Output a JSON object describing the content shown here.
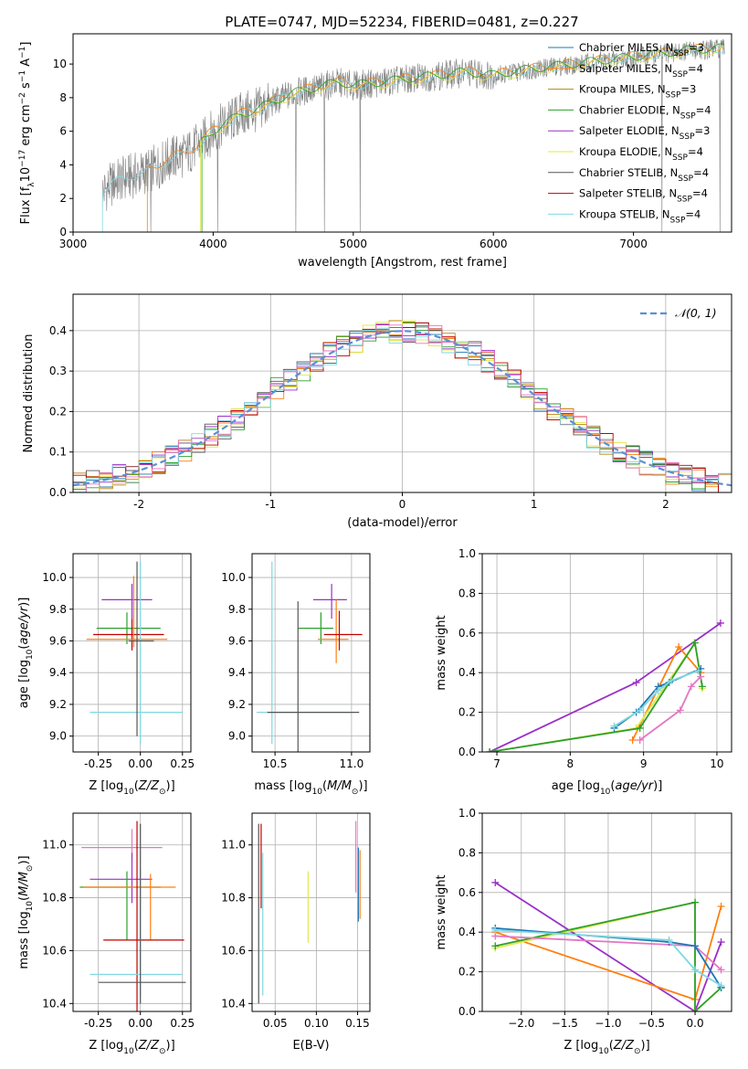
{
  "figure_title": "PLATE=0747, MJD=52234, FIBERID=0481, z=0.227",
  "colors": {
    "Chabrier MILES": "#1f77b4",
    "Salpeter MILES": "#ff7f0e",
    "Kroupa MILES": "#b8860b",
    "Chabrier ELODIE": "#2ca02c",
    "Salpeter ELODIE": "#9b30c8",
    "Kroupa ELODIE": "#e0e84a",
    "Chabrier STELIB": "#555555",
    "Salpeter STELIB": "#c00000",
    "Kroupa STELIB": "#7fd8e0",
    "data": "#808080",
    "gauss": "#5b8fd6",
    "pink": "#e377c2",
    "lime": "#bcdf3a"
  },
  "chart_data": [
    {
      "id": "spectrum",
      "type": "line",
      "xlabel": "wavelength [Angstrom, rest frame]",
      "ylabel": "Flux [fλ10⁻¹⁷ erg cm⁻² s⁻¹ A⁻¹]",
      "xlim": [
        3000,
        7700
      ],
      "ylim": [
        0,
        11.8
      ],
      "xticks": [
        3000,
        4000,
        5000,
        6000,
        7000
      ],
      "yticks": [
        0,
        2,
        4,
        6,
        8,
        10
      ],
      "grid": false,
      "legend_position": "top-right",
      "legend": [
        {
          "label": "Chabrier MILES, N",
          "sub": "SSP",
          "suffix": "=3",
          "color": "#1f77b4"
        },
        {
          "label": "Salpeter MILES, N",
          "sub": "SSP",
          "suffix": "=4",
          "color": "#ff7f0e"
        },
        {
          "label": "Kroupa MILES, N",
          "sub": "SSP",
          "suffix": "=3",
          "color": "#b8860b"
        },
        {
          "label": "Chabrier ELODIE, N",
          "sub": "SSP",
          "suffix": "=4",
          "color": "#2ca02c"
        },
        {
          "label": "Salpeter ELODIE, N",
          "sub": "SSP",
          "suffix": "=3",
          "color": "#9b30c8"
        },
        {
          "label": "Kroupa ELODIE, N",
          "sub": "SSP",
          "suffix": "=4",
          "color": "#e0e84a"
        },
        {
          "label": "Chabrier STELIB, N",
          "sub": "SSP",
          "suffix": "=4",
          "color": "#555555"
        },
        {
          "label": "Salpeter STELIB, N",
          "sub": "SSP",
          "suffix": "=4",
          "color": "#c00000"
        },
        {
          "label": "Kroupa STELIB, N",
          "sub": "SSP",
          "suffix": "=4",
          "color": "#7fd8e0"
        }
      ],
      "continuum": {
        "x": [
          3210,
          3300,
          3400,
          3500,
          3600,
          3700,
          3800,
          3900,
          4000,
          4100,
          4200,
          4300,
          4400,
          4500,
          4600,
          4700,
          4800,
          4900,
          5000,
          5200,
          5400,
          5600,
          5800,
          6000,
          6200,
          6400,
          6600,
          6800,
          7000,
          7200,
          7400,
          7600
        ],
        "y": [
          2.4,
          3.0,
          3.3,
          3.5,
          3.9,
          4.4,
          4.6,
          5.2,
          6.0,
          6.5,
          7.0,
          7.2,
          7.6,
          8.0,
          8.3,
          8.5,
          8.7,
          8.9,
          8.7,
          8.9,
          9.1,
          9.3,
          9.5,
          9.3,
          9.6,
          9.8,
          10.0,
          10.2,
          10.4,
          10.6,
          10.8,
          10.9
        ]
      },
      "model_starts": [
        {
          "series": "Kroupa STELIB",
          "x_start": 3210
        },
        {
          "series": "Salpeter MILES",
          "x_start": 3530
        },
        {
          "series": "Kroupa ELODIE",
          "x_start": 3910
        }
      ]
    },
    {
      "id": "residual_histogram",
      "type": "bar",
      "xlabel": "(data-model)/error",
      "ylabel": "Normed distribution",
      "xlim": [
        -2.5,
        2.5
      ],
      "ylim": [
        0,
        0.49
      ],
      "xticks": [
        -2,
        -1,
        0,
        1,
        2
      ],
      "yticks": [
        0.0,
        0.1,
        0.2,
        0.3,
        0.4
      ],
      "grid": true,
      "legend_position": "top-right",
      "legend": [
        {
          "label": "𝒩(0, 1)",
          "color": "#5b8fd6",
          "dashed": true
        }
      ],
      "bin_width": 0.1
    },
    {
      "id": "age_vs_Z",
      "type": "scatter",
      "xlabel": "Z [log₁₀(Z/Z⊙)]",
      "ylabel": "age  [log₁₀(age/yr)]",
      "xlim": [
        -0.4,
        0.3
      ],
      "ylim": [
        8.9,
        10.15
      ],
      "xticks": [
        -0.25,
        0.0,
        0.25
      ],
      "yticks": [
        9.0,
        9.2,
        9.4,
        9.6,
        9.8,
        10.0
      ],
      "grid": true,
      "points": [
        {
          "series": "Salpeter ELODIE",
          "x": -0.05,
          "y": 9.86,
          "xerr": [
            0.18,
            0.12
          ],
          "yerr": [
            0.12,
            0.1
          ]
        },
        {
          "series": "Chabrier ELODIE",
          "x": -0.08,
          "y": 9.68,
          "xerr": [
            0.18,
            0.2
          ],
          "yerr": [
            0.1,
            0.1
          ]
        },
        {
          "series": "Salpeter STELIB",
          "x": -0.05,
          "y": 9.64,
          "xerr": [
            0.23,
            0.19
          ],
          "yerr": [
            0.1,
            0.1
          ]
        },
        {
          "series": "Salpeter MILES",
          "x": -0.04,
          "y": 9.61,
          "xerr": [
            0.28,
            0.2
          ],
          "yerr": [
            0.05,
            0.4
          ]
        },
        {
          "series": "Kroupa STELIB",
          "x": 0.0,
          "y": 9.15,
          "xerr": [
            0.3,
            0.25
          ],
          "yerr": [
            0.2,
            0.95
          ]
        },
        {
          "series": "Chabrier STELIB",
          "x": -0.02,
          "y": 9.6,
          "xerr": [
            0.05,
            0.1
          ],
          "yerr": [
            0.6,
            0.5
          ]
        }
      ]
    },
    {
      "id": "age_vs_mass",
      "type": "scatter",
      "xlabel": "mass [log₁₀(M/M⊙)]",
      "ylabel": "",
      "xlim": [
        10.35,
        11.12
      ],
      "ylim": [
        8.9,
        10.15
      ],
      "xticks": [
        10.5,
        11.0
      ],
      "yticks": [
        9.0,
        9.2,
        9.4,
        9.6,
        9.8,
        10.0
      ],
      "grid": true,
      "points": [
        {
          "series": "Salpeter ELODIE",
          "x": 10.87,
          "y": 9.86,
          "xerr": [
            0.12,
            0.1
          ],
          "yerr": [
            0.12,
            0.1
          ]
        },
        {
          "series": "Chabrier ELODIE",
          "x": 10.8,
          "y": 9.68,
          "xerr": [
            0.15,
            0.08
          ],
          "yerr": [
            0.1,
            0.1
          ]
        },
        {
          "series": "Salpeter MILES",
          "x": 10.9,
          "y": 9.61,
          "xerr": [
            0.12,
            0.08
          ],
          "yerr": [
            0.15,
            0.25
          ]
        },
        {
          "series": "Salpeter STELIB",
          "x": 10.92,
          "y": 9.64,
          "xerr": [
            0.1,
            0.15
          ],
          "yerr": [
            0.1,
            0.15
          ]
        },
        {
          "series": "Kroupa STELIB",
          "x": 10.48,
          "y": 9.15,
          "xerr": [
            0.1,
            0.52
          ],
          "yerr": [
            0.2,
            0.95
          ]
        },
        {
          "series": "Chabrier STELIB",
          "x": 10.65,
          "y": 9.15,
          "xerr": [
            0.2,
            0.4
          ],
          "yerr": [
            0.5,
            0.7
          ]
        }
      ]
    },
    {
      "id": "mass_weight_vs_age",
      "type": "line",
      "xlabel": "age  [log₁₀(age/yr)]",
      "ylabel": "mass weight",
      "xlim": [
        6.8,
        10.2
      ],
      "ylim": [
        0.0,
        1.0
      ],
      "xticks": [
        7,
        8,
        9,
        10
      ],
      "yticks": [
        0.0,
        0.2,
        0.4,
        0.6,
        0.8,
        1.0
      ],
      "grid": true,
      "series": [
        {
          "name": "Salpeter ELODIE",
          "x": [
            6.9,
            8.9,
            10.05
          ],
          "y": [
            0.0,
            0.35,
            0.65
          ]
        },
        {
          "name": "Salpeter MILES",
          "x": [
            8.85,
            9.48,
            9.78
          ],
          "y": [
            0.06,
            0.53,
            0.4
          ]
        },
        {
          "name": "Kroupa ELODIE",
          "x": [
            6.9,
            8.9,
            9.7,
            9.8
          ],
          "y": [
            0.0,
            0.12,
            0.55,
            0.32
          ]
        },
        {
          "name": "Chabrier ELODIE",
          "x": [
            6.9,
            8.95,
            9.7,
            9.8
          ],
          "y": [
            0.0,
            0.12,
            0.55,
            0.33
          ]
        },
        {
          "name": "Chabrier MILES",
          "x": [
            8.6,
            8.9,
            9.2,
            9.35,
            9.78
          ],
          "y": [
            0.12,
            0.2,
            0.33,
            0.35,
            0.42
          ]
        },
        {
          "name": "pink",
          "x": [
            8.95,
            9.5,
            9.65,
            9.78
          ],
          "y": [
            0.06,
            0.21,
            0.33,
            0.38
          ]
        },
        {
          "name": "Kroupa STELIB",
          "x": [
            8.6,
            8.95,
            9.2,
            9.38,
            9.75
          ],
          "y": [
            0.13,
            0.21,
            0.31,
            0.36,
            0.41
          ]
        }
      ]
    },
    {
      "id": "mass_vs_Z",
      "type": "scatter",
      "xlabel": "Z [log₁₀(Z/Z⊙)]",
      "ylabel": "mass [log₁₀(M/M⊙)]",
      "xlim": [
        -0.4,
        0.3
      ],
      "ylim": [
        10.37,
        11.12
      ],
      "xticks": [
        -0.25,
        0.0,
        0.25
      ],
      "yticks": [
        10.4,
        10.6,
        10.8,
        11.0
      ],
      "grid": true,
      "points": [
        {
          "series": "pink",
          "x": -0.05,
          "y": 10.99,
          "xerr": [
            0.3,
            0.18
          ],
          "yerr": [
            0.05,
            0.07
          ]
        },
        {
          "series": "Salpeter ELODIE",
          "x": -0.05,
          "y": 10.87,
          "xerr": [
            0.25,
            0.12
          ],
          "yerr": [
            0.09,
            0.1
          ]
        },
        {
          "series": "Chabrier ELODIE",
          "x": -0.08,
          "y": 10.84,
          "xerr": [
            0.28,
            0.2
          ],
          "yerr": [
            0.2,
            0.06
          ]
        },
        {
          "series": "Salpeter MILES",
          "x": 0.06,
          "y": 10.84,
          "xerr": [
            0.4,
            0.15
          ],
          "yerr": [
            0.2,
            0.05
          ]
        },
        {
          "series": "Salpeter STELIB",
          "x": -0.02,
          "y": 10.64,
          "xerr": [
            0.2,
            0.28
          ],
          "yerr": [
            0.3,
            0.45
          ]
        },
        {
          "series": "Kroupa STELIB",
          "x": 0.0,
          "y": 10.51,
          "xerr": [
            0.3,
            0.25
          ],
          "yerr": [
            0.08,
            0.4
          ]
        },
        {
          "series": "Chabrier STELIB",
          "x": 0.0,
          "y": 10.48,
          "xerr": [
            0.25,
            0.27
          ],
          "yerr": [
            0.08,
            0.6
          ]
        }
      ]
    },
    {
      "id": "mass_vs_EBV",
      "type": "scatter",
      "xlabel": "E(B-V)",
      "ylabel": "",
      "xlim": [
        0.022,
        0.165
      ],
      "ylim": [
        10.37,
        11.12
      ],
      "xticks": [
        0.05,
        0.1,
        0.15
      ],
      "yticks": [
        10.4,
        10.6,
        10.8,
        11.0
      ],
      "grid": true,
      "points": [
        {
          "series": "Chabrier STELIB",
          "x": 0.03,
          "y": 10.74,
          "yerr": [
            0.34,
            0.34
          ]
        },
        {
          "series": "Salpeter STELIB",
          "x": 0.033,
          "y": 10.92,
          "yerr": [
            0.16,
            0.16
          ]
        },
        {
          "series": "Kroupa STELIB",
          "x": 0.035,
          "y": 10.7,
          "yerr": [
            0.27,
            0.27
          ]
        },
        {
          "series": "Kroupa ELODIE",
          "x": 0.09,
          "y": 10.77,
          "yerr": [
            0.14,
            0.13
          ]
        },
        {
          "series": "pink",
          "x": 0.148,
          "y": 10.95,
          "yerr": [
            0.13,
            0.14
          ]
        },
        {
          "series": "Chabrier MILES",
          "x": 0.151,
          "y": 10.85,
          "yerr": [
            0.14,
            0.14
          ]
        },
        {
          "series": "Salpeter MILES",
          "x": 0.153,
          "y": 10.85,
          "yerr": [
            0.13,
            0.13
          ]
        }
      ]
    },
    {
      "id": "mass_weight_vs_Z",
      "type": "line",
      "xlabel": "Z [log₁₀(Z/Z⊙)]",
      "ylabel": "mass weight",
      "xlim": [
        -2.45,
        0.42
      ],
      "ylim": [
        0.0,
        1.0
      ],
      "xticks": [
        -2.0,
        -1.5,
        -1.0,
        -0.5,
        0.0
      ],
      "yticks": [
        0.0,
        0.2,
        0.4,
        0.6,
        0.8,
        1.0
      ],
      "grid": true,
      "series": [
        {
          "name": "Salpeter ELODIE",
          "x": [
            -2.3,
            0.0,
            0.3
          ],
          "y": [
            0.65,
            0.0,
            0.35
          ]
        },
        {
          "name": "Salpeter MILES",
          "x": [
            -2.3,
            0.0,
            0.3
          ],
          "y": [
            0.4,
            0.06,
            0.53
          ]
        },
        {
          "name": "Kroupa ELODIE",
          "x": [
            -2.3,
            0.0,
            0.0,
            0.3
          ],
          "y": [
            0.32,
            0.55,
            0.0,
            0.12
          ]
        },
        {
          "name": "Chabrier ELODIE",
          "x": [
            -2.3,
            0.0,
            0.0,
            0.3
          ],
          "y": [
            0.33,
            0.55,
            0.0,
            0.12
          ]
        },
        {
          "name": "pink",
          "x": [
            -2.3,
            0.0,
            0.3
          ],
          "y": [
            0.38,
            0.33,
            0.21
          ]
        },
        {
          "name": "Chabrier MILES",
          "x": [
            -2.3,
            -0.3,
            0.0,
            0.3
          ],
          "y": [
            0.42,
            0.35,
            0.33,
            0.12
          ]
        },
        {
          "name": "Kroupa STELIB",
          "x": [
            -2.3,
            -0.3,
            0.0,
            0.3
          ],
          "y": [
            0.41,
            0.36,
            0.21,
            0.13
          ]
        }
      ]
    }
  ]
}
